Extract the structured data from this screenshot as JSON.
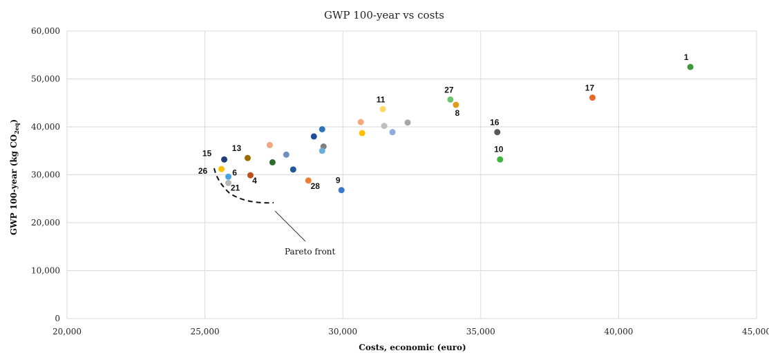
{
  "chart_data": {
    "type": "scatter",
    "title": "GWP 100-year vs costs",
    "xlabel": "Costs, economic (euro)",
    "ylabel_main": "GWP 100-year (kg CO",
    "ylabel_sub": "2eq",
    "ylabel_end": ")",
    "xlim": [
      20000,
      45000
    ],
    "ylim": [
      0,
      60000
    ],
    "grid": true,
    "x_ticks": [
      "20,000",
      "25,000",
      "30,000",
      "35,000",
      "40,000",
      "45,000"
    ],
    "y_ticks": [
      "0",
      "10,000",
      "20,000",
      "30,000",
      "40,000",
      "50,000",
      "60,000"
    ],
    "annotation": "Pareto front",
    "points": [
      {
        "x": 42600,
        "y": 52500,
        "color": "#3a9a3a",
        "label": "1"
      },
      {
        "x": 39050,
        "y": 46100,
        "color": "#e8672a",
        "label": "17"
      },
      {
        "x": 33900,
        "y": 45700,
        "color": "#6cc46c",
        "label": "27"
      },
      {
        "x": 34100,
        "y": 44600,
        "color": "#e09a1c",
        "label": "8"
      },
      {
        "x": 31450,
        "y": 43700,
        "color": "#ffd966",
        "label": "11"
      },
      {
        "x": 30650,
        "y": 41000,
        "color": "#f7a77c",
        "label": ""
      },
      {
        "x": 31500,
        "y": 40200,
        "color": "#bfbfbf",
        "label": ""
      },
      {
        "x": 32350,
        "y": 40900,
        "color": "#a6a6a6",
        "label": ""
      },
      {
        "x": 31800,
        "y": 38900,
        "color": "#8faadc",
        "label": ""
      },
      {
        "x": 30700,
        "y": 38700,
        "color": "#ffc000",
        "label": ""
      },
      {
        "x": 35600,
        "y": 38900,
        "color": "#595959",
        "label": "16"
      },
      {
        "x": 35700,
        "y": 33200,
        "color": "#3db53d",
        "label": "10"
      },
      {
        "x": 29250,
        "y": 39500,
        "color": "#2e75b6",
        "label": ""
      },
      {
        "x": 28950,
        "y": 38000,
        "color": "#1f4e99",
        "label": ""
      },
      {
        "x": 29300,
        "y": 35900,
        "color": "#7f7f7f",
        "label": ""
      },
      {
        "x": 29250,
        "y": 35000,
        "color": "#6baed6",
        "label": ""
      },
      {
        "x": 27350,
        "y": 36200,
        "color": "#f4a582",
        "label": ""
      },
      {
        "x": 27950,
        "y": 34200,
        "color": "#6f8fc4",
        "label": ""
      },
      {
        "x": 27450,
        "y": 32600,
        "color": "#2d6a2d",
        "label": ""
      },
      {
        "x": 28200,
        "y": 31100,
        "color": "#1f5a96",
        "label": ""
      },
      {
        "x": 26550,
        "y": 33500,
        "color": "#9c6b00",
        "label": "13"
      },
      {
        "x": 25700,
        "y": 33200,
        "color": "#1f3e78",
        "label": "15"
      },
      {
        "x": 25600,
        "y": 31200,
        "color": "#ffc000",
        "label": "26"
      },
      {
        "x": 25850,
        "y": 29600,
        "color": "#4aa3df",
        "label": "6"
      },
      {
        "x": 26650,
        "y": 29900,
        "color": "#c0501b",
        "label": "4"
      },
      {
        "x": 25850,
        "y": 28300,
        "color": "#b5b5b5",
        "label": "21"
      },
      {
        "x": 28750,
        "y": 28800,
        "color": "#ed7d31",
        "label": "28"
      },
      {
        "x": 29950,
        "y": 26800,
        "color": "#3a78c9",
        "label": "9"
      }
    ]
  }
}
